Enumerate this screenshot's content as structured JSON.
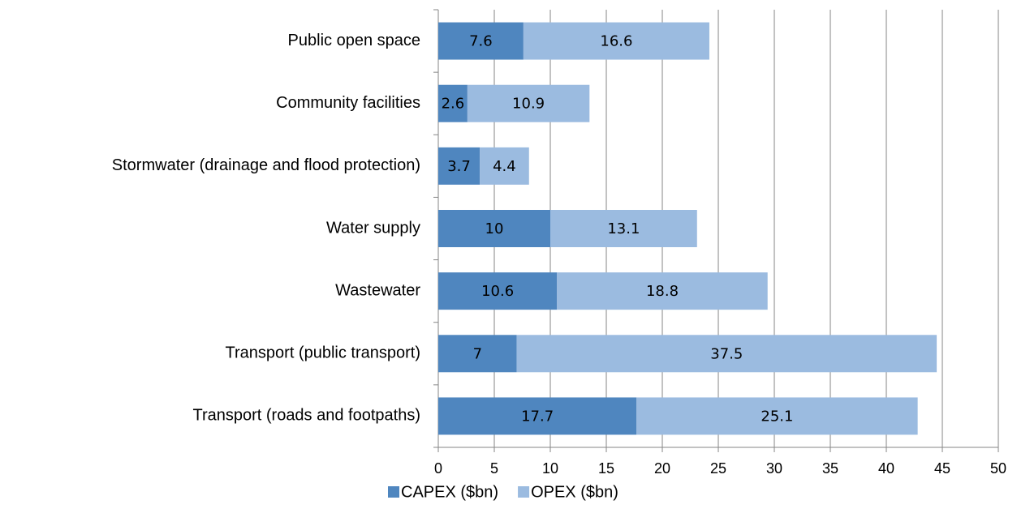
{
  "chart_data": {
    "type": "bar",
    "orientation": "horizontal",
    "stacked": true,
    "categories": [
      "Public open space",
      "Community facilities",
      "Stormwater (drainage and flood protection)",
      "Water supply",
      "Wastewater",
      "Transport (public transport)",
      "Transport (roads and footpaths)"
    ],
    "series": [
      {
        "name": "CAPEX ($bn)",
        "color": "#4f86bf",
        "values": [
          7.6,
          2.6,
          3.7,
          10,
          10.6,
          7,
          17.7
        ]
      },
      {
        "name": "OPEX ($bn)",
        "color": "#9bbbe0",
        "values": [
          16.6,
          10.9,
          4.4,
          13.1,
          18.8,
          37.5,
          25.1
        ]
      }
    ],
    "xlim": [
      0,
      50
    ],
    "xticks": [
      0,
      5,
      10,
      15,
      20,
      25,
      30,
      35,
      40,
      45,
      50
    ],
    "grid": true,
    "legend": "bottom"
  }
}
